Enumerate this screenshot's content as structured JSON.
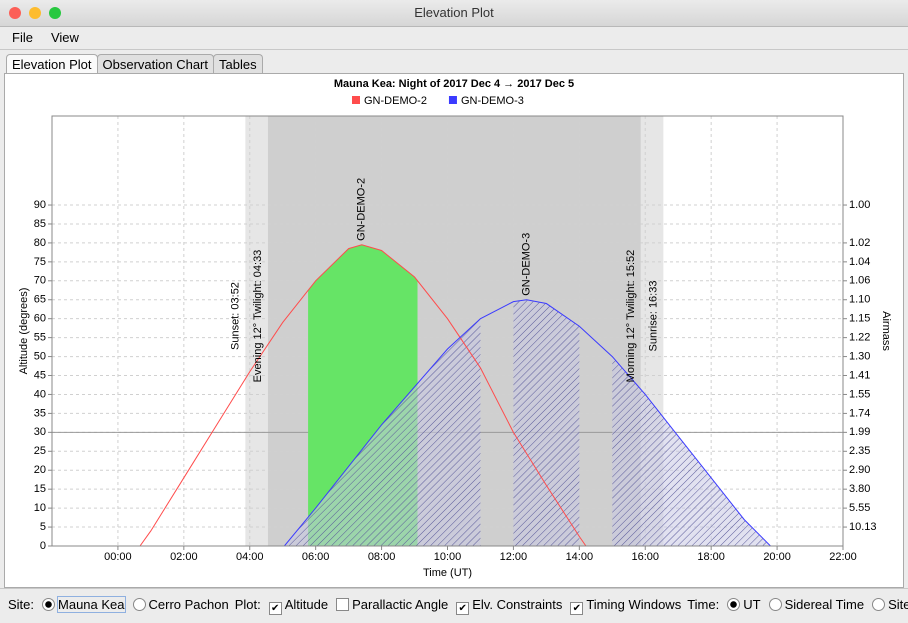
{
  "window": {
    "title": "Elevation Plot"
  },
  "menu": [
    "File",
    "View"
  ],
  "tabs": [
    {
      "label": "Elevation Plot",
      "selected": true
    },
    {
      "label": "Observation Chart",
      "selected": false
    },
    {
      "label": "Tables",
      "selected": false
    }
  ],
  "chart_data": {
    "type": "line",
    "title": "Mauna Kea: Night of 2017 Dec 4 → 2017 Dec 5",
    "xlabel": "Time (UT)",
    "ylabel": "Altitude (degrees)",
    "y2label": "Airmass",
    "xlim": [
      -2,
      22
    ],
    "ylim": [
      0,
      113.5
    ],
    "xticks": [
      {
        "value": 0,
        "label": "00:00"
      },
      {
        "value": 2,
        "label": "02:00"
      },
      {
        "value": 4,
        "label": "04:00"
      },
      {
        "value": 6,
        "label": "06:00"
      },
      {
        "value": 8,
        "label": "08:00"
      },
      {
        "value": 10,
        "label": "10:00"
      },
      {
        "value": 12,
        "label": "12:00"
      },
      {
        "value": 14,
        "label": "14:00"
      },
      {
        "value": 16,
        "label": "16:00"
      },
      {
        "value": 18,
        "label": "18:00"
      },
      {
        "value": 20,
        "label": "20:00"
      },
      {
        "value": 22,
        "label": "22:00"
      }
    ],
    "yticks": [
      0,
      5,
      10,
      15,
      20,
      25,
      30,
      35,
      40,
      45,
      50,
      55,
      60,
      65,
      70,
      75,
      80,
      85,
      90
    ],
    "airmass_ticks": [
      {
        "altitude": 90,
        "label": "1.00"
      },
      {
        "altitude": 80,
        "label": "1.02"
      },
      {
        "altitude": 75,
        "label": "1.04"
      },
      {
        "altitude": 70,
        "label": "1.06"
      },
      {
        "altitude": 65,
        "label": "1.10"
      },
      {
        "altitude": 60,
        "label": "1.15"
      },
      {
        "altitude": 55,
        "label": "1.22"
      },
      {
        "altitude": 50,
        "label": "1.30"
      },
      {
        "altitude": 45,
        "label": "1.41"
      },
      {
        "altitude": 40,
        "label": "1.55"
      },
      {
        "altitude": 35,
        "label": "1.74"
      },
      {
        "altitude": 30,
        "label": "1.99"
      },
      {
        "altitude": 25,
        "label": "2.35"
      },
      {
        "altitude": 20,
        "label": "2.90"
      },
      {
        "altitude": 15,
        "label": "3.80"
      },
      {
        "altitude": 10,
        "label": "5.55"
      },
      {
        "altitude": 5,
        "label": "10.13"
      }
    ],
    "grid": true,
    "constraint_line": 30,
    "night_bands": [
      {
        "start": 3.867,
        "end": 4.55,
        "color": "#e6e6e6"
      },
      {
        "start": 4.55,
        "end": 15.867,
        "color": "#cfcfcf"
      },
      {
        "start": 15.867,
        "end": 16.55,
        "color": "#e6e6e6"
      }
    ],
    "annotations": [
      {
        "x": 3.867,
        "label": "Sunset: 03:52"
      },
      {
        "x": 4.55,
        "label": "Evening 12° Twilight: 04:33"
      },
      {
        "x": 15.867,
        "label": "Morning 12° Twilight: 15:52"
      },
      {
        "x": 16.55,
        "label": "Sunrise: 16:33"
      }
    ],
    "series": [
      {
        "name": "GN-DEMO-2",
        "color": "#ff4c4c",
        "x": [
          0.67,
          1,
          2,
          3,
          4,
          5,
          6,
          7,
          7.4,
          8,
          9,
          10,
          11,
          12,
          13,
          14,
          14.2
        ],
        "values": [
          0,
          4,
          18,
          32,
          46,
          59,
          70,
          78.5,
          79.5,
          78,
          71,
          60,
          47,
          30,
          16,
          2.5,
          0
        ],
        "filled_ranges": [
          [
            5.77,
            9.09
          ]
        ],
        "fill": "#66e466"
      },
      {
        "name": "GN-DEMO-3",
        "color": "#3b3bff",
        "x": [
          5.05,
          6,
          7,
          8,
          9,
          10,
          11,
          12,
          12.4,
          13,
          14,
          15,
          16,
          17,
          18,
          19,
          19.8
        ],
        "values": [
          0,
          10,
          21,
          32,
          42,
          52,
          60,
          64.5,
          65,
          64,
          58,
          50,
          40,
          29,
          18,
          7,
          0
        ],
        "hatched_ranges": [
          [
            5.05,
            11.0
          ],
          [
            12.0,
            14.0
          ],
          [
            15.0,
            19.8
          ]
        ]
      }
    ]
  },
  "controls": {
    "site": {
      "label": "Site:",
      "options": [
        {
          "label": "Mauna Kea",
          "checked": true
        },
        {
          "label": "Cerro Pachon",
          "checked": false
        }
      ]
    },
    "plot": {
      "label": "Plot:",
      "options": [
        {
          "label": "Altitude",
          "checked": true
        },
        {
          "label": "Parallactic Angle",
          "checked": false
        },
        {
          "label": "Elv. Constraints",
          "checked": true
        },
        {
          "label": "Timing Windows",
          "checked": true
        }
      ]
    },
    "time": {
      "label": "Time:",
      "options": [
        {
          "label": "UT",
          "checked": true
        },
        {
          "label": "Sidereal Time",
          "checked": false
        },
        {
          "label": "Site Time",
          "checked": false
        }
      ]
    }
  }
}
